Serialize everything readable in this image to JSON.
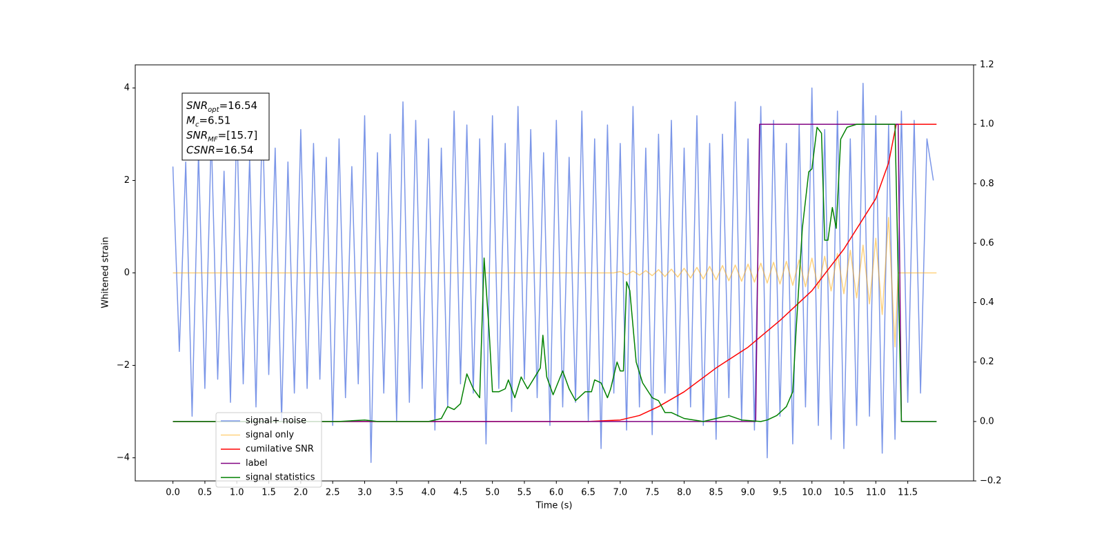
{
  "chart_data": {
    "type": "line",
    "xlabel": "Time (s)",
    "ylabel": "Whitened strain",
    "xlim": [
      -0.59,
      12.53
    ],
    "ylim": [
      -4.5,
      4.5
    ],
    "y2lim": [
      -0.2,
      1.2
    ],
    "xticks": [
      {
        "value": 0,
        "label": "0.0"
      },
      {
        "value": 0.5,
        "label": "0.5"
      },
      {
        "value": 1,
        "label": "1.0"
      },
      {
        "value": 1.5,
        "label": "1.5"
      },
      {
        "value": 2,
        "label": "2.0"
      },
      {
        "value": 2.5,
        "label": "2.5"
      },
      {
        "value": 3,
        "label": "3.0"
      },
      {
        "value": 3.5,
        "label": "3.5"
      },
      {
        "value": 4,
        "label": "4.0"
      },
      {
        "value": 4.5,
        "label": "4.5"
      },
      {
        "value": 5,
        "label": "5.0"
      },
      {
        "value": 5.5,
        "label": "5.5"
      },
      {
        "value": 6,
        "label": "6.0"
      },
      {
        "value": 6.5,
        "label": "6.5"
      },
      {
        "value": 7,
        "label": "7.0"
      },
      {
        "value": 7.5,
        "label": "7.5"
      },
      {
        "value": 8,
        "label": "8.0"
      },
      {
        "value": 8.5,
        "label": "8.5"
      },
      {
        "value": 9,
        "label": "9.0"
      },
      {
        "value": 9.5,
        "label": "9.5"
      },
      {
        "value": 10,
        "label": "10.0"
      },
      {
        "value": 10.5,
        "label": "10.5"
      },
      {
        "value": 11,
        "label": "11.0"
      },
      {
        "value": 11.5,
        "label": "11.5"
      }
    ],
    "yticks": [
      {
        "value": -4,
        "label": "−4"
      },
      {
        "value": -2,
        "label": "−2"
      },
      0,
      2,
      4
    ],
    "y2ticks": [
      {
        "value": -0.2,
        "label": "−0.2"
      },
      {
        "value": 0,
        "label": "0.0"
      },
      0.2,
      0.4,
      0.6,
      0.8,
      {
        "value": 1,
        "label": "1.0"
      },
      1.2
    ],
    "annotations": [
      {
        "var": "SNR",
        "sub": "opt",
        "text": "=16.54"
      },
      {
        "var": "M",
        "sub": "c",
        "text": "=6.51"
      },
      {
        "var": "SNR",
        "sub": "MF",
        "text": "=[15.7]"
      },
      {
        "var": "CSNR",
        "sub": "",
        "text": "=16.54"
      }
    ],
    "legend": "lower left",
    "series": [
      {
        "name": "signal+ noise",
        "color": "#7b96e8",
        "alpha": 1,
        "x": [
          0,
          0.1,
          0.2,
          0.3,
          0.4,
          0.5,
          0.6,
          0.7,
          0.8,
          0.9,
          1,
          1.1,
          1.2,
          1.3,
          1.4,
          1.5,
          1.6,
          1.7,
          1.8,
          1.9,
          2,
          2.1,
          2.2,
          2.3,
          2.4,
          2.5,
          2.6,
          2.7,
          2.8,
          2.9,
          3,
          3.1,
          3.2,
          3.3,
          3.4,
          3.5,
          3.6,
          3.7,
          3.8,
          3.9,
          4,
          4.1,
          4.2,
          4.3,
          4.4,
          4.5,
          4.6,
          4.7,
          4.8,
          4.9,
          5,
          5.1,
          5.2,
          5.3,
          5.4,
          5.5,
          5.6,
          5.7,
          5.8,
          5.9,
          6,
          6.1,
          6.2,
          6.3,
          6.4,
          6.5,
          6.6,
          6.7,
          6.8,
          6.9,
          7,
          7.1,
          7.2,
          7.3,
          7.4,
          7.5,
          7.6,
          7.7,
          7.8,
          7.9,
          8,
          8.1,
          8.2,
          8.3,
          8.4,
          8.5,
          8.6,
          8.7,
          8.8,
          8.9,
          9,
          9.1,
          9.2,
          9.3,
          9.4,
          9.5,
          9.6,
          9.7,
          9.8,
          9.9,
          10,
          10.1,
          10.2,
          10.3,
          10.4,
          10.5,
          10.6,
          10.7,
          10.8,
          10.9,
          11,
          11.1,
          11.2,
          11.3,
          11.4,
          11.5,
          11.6,
          11.7,
          11.8,
          11.9
        ],
        "values": [
          2.3,
          -1.7,
          2.4,
          -3.1,
          2.6,
          -2.5,
          3,
          -2.3,
          2.2,
          -2.8,
          3.3,
          -2.4,
          2.5,
          -2.9,
          3.5,
          -2.2,
          2.7,
          -3.2,
          2.4,
          -2.6,
          3.1,
          -2.5,
          2.8,
          -2.3,
          2.5,
          -3.3,
          2.9,
          -2.7,
          2.3,
          -2.4,
          3.4,
          -4.1,
          2.6,
          -2.6,
          3,
          -3.2,
          3.7,
          -2.8,
          3.3,
          -2.5,
          2.9,
          -3.4,
          2.7,
          -2.9,
          3.5,
          -2.4,
          3.2,
          -2.6,
          2.9,
          -3.7,
          3.4,
          -2.5,
          2.8,
          -3,
          3.6,
          -2.3,
          3.1,
          -2.7,
          2.6,
          -3.3,
          3.3,
          -2.9,
          2.5,
          -2.8,
          3.5,
          -3.2,
          2.9,
          -3.8,
          3.2,
          -2.6,
          2.8,
          -3.4,
          3.6,
          -2.9,
          2.7,
          -3.5,
          3,
          -2.6,
          3.3,
          -3.1,
          2.7,
          -2.9,
          3.4,
          -3.3,
          2.8,
          -3.6,
          3,
          -2.7,
          3.7,
          -3.2,
          2.9,
          -3.4,
          3.6,
          -4,
          3.3,
          -3.1,
          2.8,
          -3.7,
          3.2,
          -2.9,
          4,
          -3.3,
          3.1,
          -3.6,
          3.5,
          -3.8,
          2.9,
          -3.3,
          4.1,
          -3.1,
          3.4,
          -3.9,
          3.2,
          -3.6,
          3.5,
          -2.8,
          3.3,
          -2.6,
          2.9,
          2
        ]
      },
      {
        "name": "signal only",
        "color": "orange",
        "alpha": 0.5,
        "x": [
          0,
          6.9,
          7,
          7.1,
          7.2,
          7.3,
          7.4,
          7.5,
          7.6,
          7.7,
          7.8,
          7.9,
          8,
          8.1,
          8.2,
          8.3,
          8.4,
          8.5,
          8.6,
          8.7,
          8.8,
          8.9,
          9,
          9.1,
          9.2,
          9.3,
          9.4,
          9.5,
          9.6,
          9.7,
          9.8,
          9.9,
          10,
          10.1,
          10.2,
          10.3,
          10.4,
          10.5,
          10.6,
          10.7,
          10.8,
          10.9,
          11,
          11.1,
          11.2,
          11.3,
          11.35,
          11.95
        ],
        "values": [
          0,
          0,
          0.03,
          -0.04,
          0.04,
          -0.05,
          0.05,
          -0.06,
          0.07,
          -0.08,
          0.08,
          -0.09,
          0.1,
          -0.11,
          0.12,
          -0.13,
          0.14,
          -0.15,
          0.16,
          -0.17,
          0.17,
          -0.18,
          0.19,
          -0.2,
          0.21,
          -0.22,
          0.23,
          -0.24,
          0.25,
          -0.27,
          0.28,
          -0.3,
          0.32,
          -0.34,
          0.36,
          -0.39,
          0.42,
          -0.45,
          0.49,
          -0.54,
          0.6,
          -0.67,
          0.75,
          -0.9,
          1.2,
          -1.6,
          0,
          0
        ]
      },
      {
        "name": "cumilative SNR",
        "color": "red",
        "alpha": 1,
        "axis": "y2",
        "x": [
          0,
          6.5,
          7,
          7.3,
          7.6,
          8,
          8.5,
          9,
          9.5,
          10,
          10.5,
          11,
          11.2,
          11.32,
          11.95
        ],
        "values": [
          0,
          0,
          0.005,
          0.02,
          0.05,
          0.1,
          0.18,
          0.25,
          0.34,
          0.44,
          0.58,
          0.75,
          0.87,
          1,
          1
        ]
      },
      {
        "name": "label",
        "color": "purple",
        "alpha": 1,
        "axis": "y2",
        "x": [
          0,
          9.12,
          9.18,
          11.35,
          11.4,
          11.95
        ],
        "values": [
          0,
          0,
          1,
          1,
          0,
          0
        ]
      },
      {
        "name": "signal statistics",
        "color": "green",
        "alpha": 1,
        "axis": "y2",
        "x": [
          0,
          2.6,
          3,
          3.2,
          4,
          4.2,
          4.3,
          4.4,
          4.5,
          4.6,
          4.7,
          4.8,
          4.87,
          4.95,
          5,
          5.1,
          5.2,
          5.25,
          5.35,
          5.45,
          5.55,
          5.75,
          5.79,
          5.85,
          5.95,
          6.1,
          6.2,
          6.3,
          6.45,
          6.55,
          6.6,
          6.7,
          6.8,
          6.85,
          6.95,
          7,
          7.05,
          7.1,
          7.15,
          7.25,
          7.35,
          7.5,
          7.6,
          7.7,
          7.8,
          8,
          8.3,
          8.5,
          8.7,
          8.9,
          9.2,
          9.3,
          9.45,
          9.6,
          9.7,
          9.75,
          9.85,
          9.95,
          10,
          10.08,
          10.15,
          10.2,
          10.25,
          10.32,
          10.38,
          10.45,
          10.55,
          10.7,
          11.3,
          11.35,
          11.4,
          11.95
        ],
        "values": [
          0,
          0,
          0.005,
          0,
          0,
          0.01,
          0.05,
          0.04,
          0.06,
          0.16,
          0.11,
          0.08,
          0.55,
          0.3,
          0.1,
          0.1,
          0.11,
          0.14,
          0.08,
          0.15,
          0.11,
          0.18,
          0.29,
          0.15,
          0.09,
          0.17,
          0.11,
          0.07,
          0.1,
          0.1,
          0.14,
          0.13,
          0.08,
          0.11,
          0.2,
          0.17,
          0.17,
          0.47,
          0.44,
          0.2,
          0.13,
          0.08,
          0.07,
          0.03,
          0.03,
          0.01,
          0,
          0.01,
          0.02,
          0.005,
          0,
          0.005,
          0.02,
          0.05,
          0.1,
          0.3,
          0.65,
          0.84,
          0.85,
          0.99,
          0.97,
          0.61,
          0.61,
          0.72,
          0.65,
          0.95,
          0.99,
          1,
          1,
          0.5,
          0,
          0
        ]
      }
    ]
  }
}
